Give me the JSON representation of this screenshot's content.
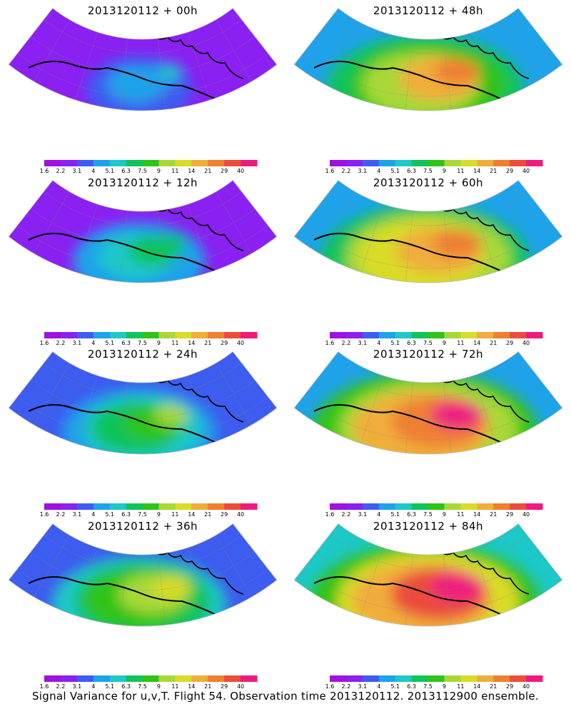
{
  "colorbar": {
    "colors": [
      "#a010e0",
      "#8a20f2",
      "#3d5cf0",
      "#1ea3ea",
      "#1cc8c8",
      "#11c45a",
      "#2ec419",
      "#a8d837",
      "#d9dc28",
      "#f1ad3a",
      "#f07f30",
      "#ec4c3a",
      "#ee1b7e"
    ],
    "ticks": [
      "1.6",
      "2.2",
      "3.1",
      "4",
      "5.1",
      "6.3",
      "7.5",
      "9",
      "11",
      "14",
      "21",
      "29",
      "40"
    ]
  },
  "panels": [
    {
      "title": "2013120112 + 00h",
      "level": 0.3
    },
    {
      "title": "2013120112 + 48h",
      "level": 0.72
    },
    {
      "title": "2013120112 + 12h",
      "level": 0.42
    },
    {
      "title": "2013120112 + 60h",
      "level": 0.78
    },
    {
      "title": "2013120112 + 24h",
      "level": 0.52
    },
    {
      "title": "2013120112 + 72h",
      "level": 0.86
    },
    {
      "title": "2013120112 + 36h",
      "level": 0.62
    },
    {
      "title": "2013120112 + 84h",
      "level": 0.88
    }
  ],
  "caption": "Signal Variance for u,v,T. Flight 54. Observation time 2013120112. 2013112900 ensemble."
}
